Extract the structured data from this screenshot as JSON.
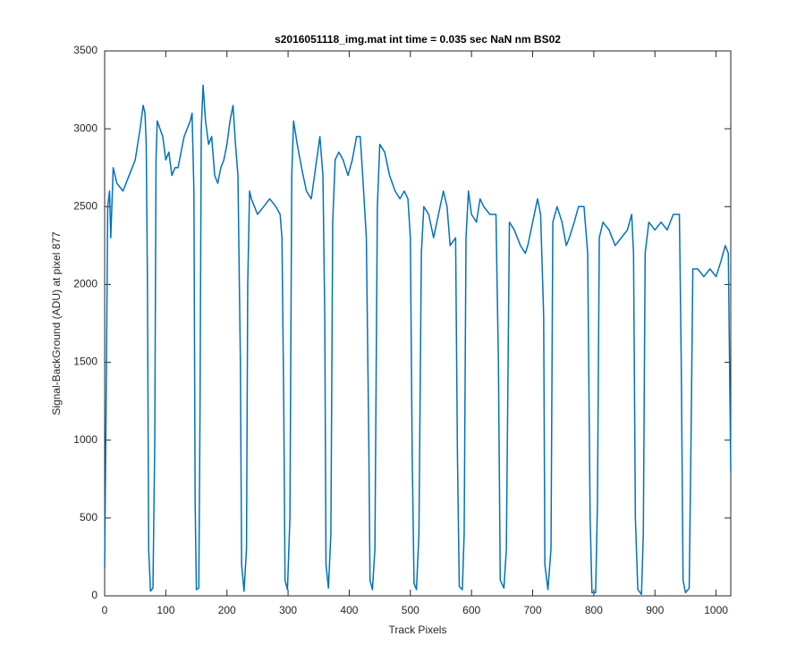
{
  "chart_data": {
    "type": "line",
    "title": "s2016051118_img.mat int time = 0.035 sec  NaN nm BS02",
    "xlabel": "Track Pixels",
    "ylabel": "Signal-BackGround (ADU) at pixel 877",
    "color": "#0072bd",
    "x": [
      0,
      3,
      5,
      8,
      10,
      14,
      20,
      30,
      40,
      50,
      58,
      63,
      66,
      68,
      70,
      72,
      75,
      79,
      82,
      84,
      86,
      95,
      100,
      105,
      110,
      115,
      120,
      125,
      130,
      135,
      140,
      143,
      146,
      148,
      150,
      154,
      156,
      158,
      161,
      165,
      170,
      175,
      180,
      185,
      190,
      195,
      200,
      205,
      210,
      214,
      218,
      222,
      224,
      228,
      232,
      234,
      237,
      240,
      250,
      260,
      270,
      280,
      287,
      290,
      293,
      295,
      299,
      303,
      306,
      309,
      315,
      322,
      330,
      338,
      345,
      352,
      357,
      360,
      362,
      366,
      370,
      373,
      377,
      383,
      390,
      398,
      405,
      412,
      418,
      422,
      428,
      432,
      434,
      438,
      442,
      446,
      450,
      458,
      466,
      475,
      483,
      490,
      496,
      500,
      503,
      506,
      510,
      514,
      518,
      522,
      530,
      538,
      546,
      554,
      560,
      565,
      574,
      577,
      580,
      585,
      588,
      591,
      595,
      600,
      608,
      614,
      620,
      630,
      640,
      644,
      647,
      653,
      657,
      662,
      670,
      680,
      688,
      692,
      700,
      708,
      713,
      718,
      720,
      725,
      730,
      733,
      740,
      748,
      755,
      760,
      768,
      775,
      784,
      790,
      794,
      797,
      803,
      806,
      809,
      815,
      825,
      835,
      845,
      855,
      862,
      865,
      868,
      872,
      878,
      881,
      884,
      890,
      900,
      910,
      920,
      930,
      940,
      943,
      946,
      950,
      956,
      959,
      962,
      970,
      980,
      990,
      1000,
      1008,
      1015,
      1020,
      1024
    ],
    "values": [
      180,
      1500,
      2500,
      2600,
      2300,
      2750,
      2650,
      2600,
      2700,
      2800,
      3000,
      3150,
      3100,
      2900,
      2000,
      300,
      30,
      50,
      1000,
      2800,
      3050,
      2950,
      2800,
      2850,
      2700,
      2750,
      2750,
      2850,
      2950,
      3000,
      3050,
      3100,
      2600,
      600,
      40,
      50,
      1200,
      3000,
      3280,
      3050,
      2900,
      2950,
      2700,
      2650,
      2750,
      2800,
      2900,
      3050,
      3150,
      2900,
      2700,
      1500,
      200,
      30,
      300,
      2000,
      2600,
      2550,
      2450,
      2500,
      2550,
      2500,
      2450,
      2300,
      1200,
      100,
      40,
      500,
      2700,
      3050,
      2900,
      2750,
      2600,
      2550,
      2750,
      2950,
      2700,
      1800,
      200,
      50,
      400,
      2400,
      2800,
      2850,
      2800,
      2700,
      2800,
      2950,
      2950,
      2700,
      2300,
      1000,
      100,
      40,
      300,
      2500,
      2900,
      2850,
      2700,
      2600,
      2550,
      2600,
      2550,
      2300,
      900,
      80,
      40,
      400,
      2200,
      2500,
      2450,
      2300,
      2450,
      2600,
      2500,
      2250,
      2300,
      900,
      60,
      40,
      400,
      2300,
      2600,
      2450,
      2400,
      2550,
      2500,
      2450,
      2450,
      1500,
      100,
      50,
      300,
      2400,
      2350,
      2250,
      2200,
      2250,
      2400,
      2550,
      2450,
      1800,
      200,
      40,
      300,
      2400,
      2500,
      2400,
      2250,
      2300,
      2400,
      2500,
      2500,
      2200,
      500,
      20,
      20,
      600,
      2300,
      2400,
      2350,
      2250,
      2300,
      2350,
      2450,
      2200,
      500,
      40,
      10,
      400,
      2200,
      2400,
      2350,
      2400,
      2350,
      2450,
      2450,
      1500,
      100,
      20,
      50,
      1000,
      2100,
      2100,
      2050,
      2100,
      2050,
      2150,
      2250,
      2200,
      800
    ],
    "xlim": [
      0,
      1024
    ],
    "xticks": [
      0,
      100,
      200,
      300,
      400,
      500,
      600,
      700,
      800,
      900,
      1000
    ],
    "ylim": [
      0,
      3500
    ],
    "yticks": [
      0,
      500,
      1000,
      1500,
      2000,
      2500,
      3000,
      3500
    ]
  }
}
